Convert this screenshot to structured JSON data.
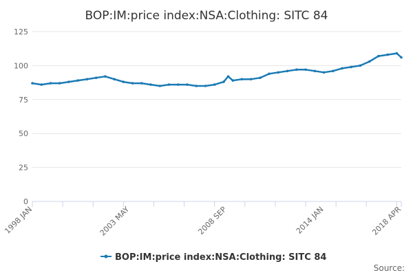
{
  "chart_data": {
    "type": "line",
    "title": "BOP:IM:price index:NSA:Clothing: SITC 84",
    "xlabel": "",
    "ylabel": "",
    "x_range": [
      "1998 JAN",
      "2018 APR"
    ],
    "x_tick_labels": [
      "1998 JAN",
      "2003 MAY",
      "2008 SEP",
      "2014 JAN",
      "2018 APR"
    ],
    "y_ticks": [
      0,
      25,
      50,
      75,
      100,
      125
    ],
    "ylim": [
      0,
      125
    ],
    "grid": true,
    "legend_position": "bottom",
    "series": [
      {
        "name": "BOP:IM:price index:NSA:Clothing: SITC 84",
        "color": "#1a7ab5",
        "x": [
          "1998-01",
          "1998-07",
          "1999-01",
          "1999-07",
          "2000-01",
          "2000-07",
          "2001-01",
          "2001-07",
          "2002-01",
          "2002-07",
          "2003-01",
          "2003-07",
          "2004-01",
          "2004-07",
          "2005-01",
          "2005-07",
          "2006-01",
          "2006-07",
          "2007-01",
          "2007-07",
          "2008-01",
          "2008-07",
          "2008-10",
          "2009-01",
          "2009-07",
          "2010-01",
          "2010-07",
          "2011-01",
          "2011-07",
          "2012-01",
          "2012-07",
          "2013-01",
          "2013-07",
          "2014-01",
          "2014-07",
          "2015-01",
          "2015-07",
          "2016-01",
          "2016-07",
          "2017-01",
          "2017-07",
          "2018-01",
          "2018-04"
        ],
        "values": [
          87,
          86,
          87,
          87,
          88,
          89,
          90,
          91,
          92,
          90,
          88,
          87,
          87,
          86,
          85,
          86,
          86,
          86,
          85,
          85,
          86,
          88,
          92,
          89,
          90,
          90,
          91,
          94,
          95,
          96,
          97,
          97,
          96,
          95,
          96,
          98,
          99,
          100,
          103,
          107,
          108,
          109,
          106
        ]
      }
    ]
  },
  "credits": "Source:"
}
